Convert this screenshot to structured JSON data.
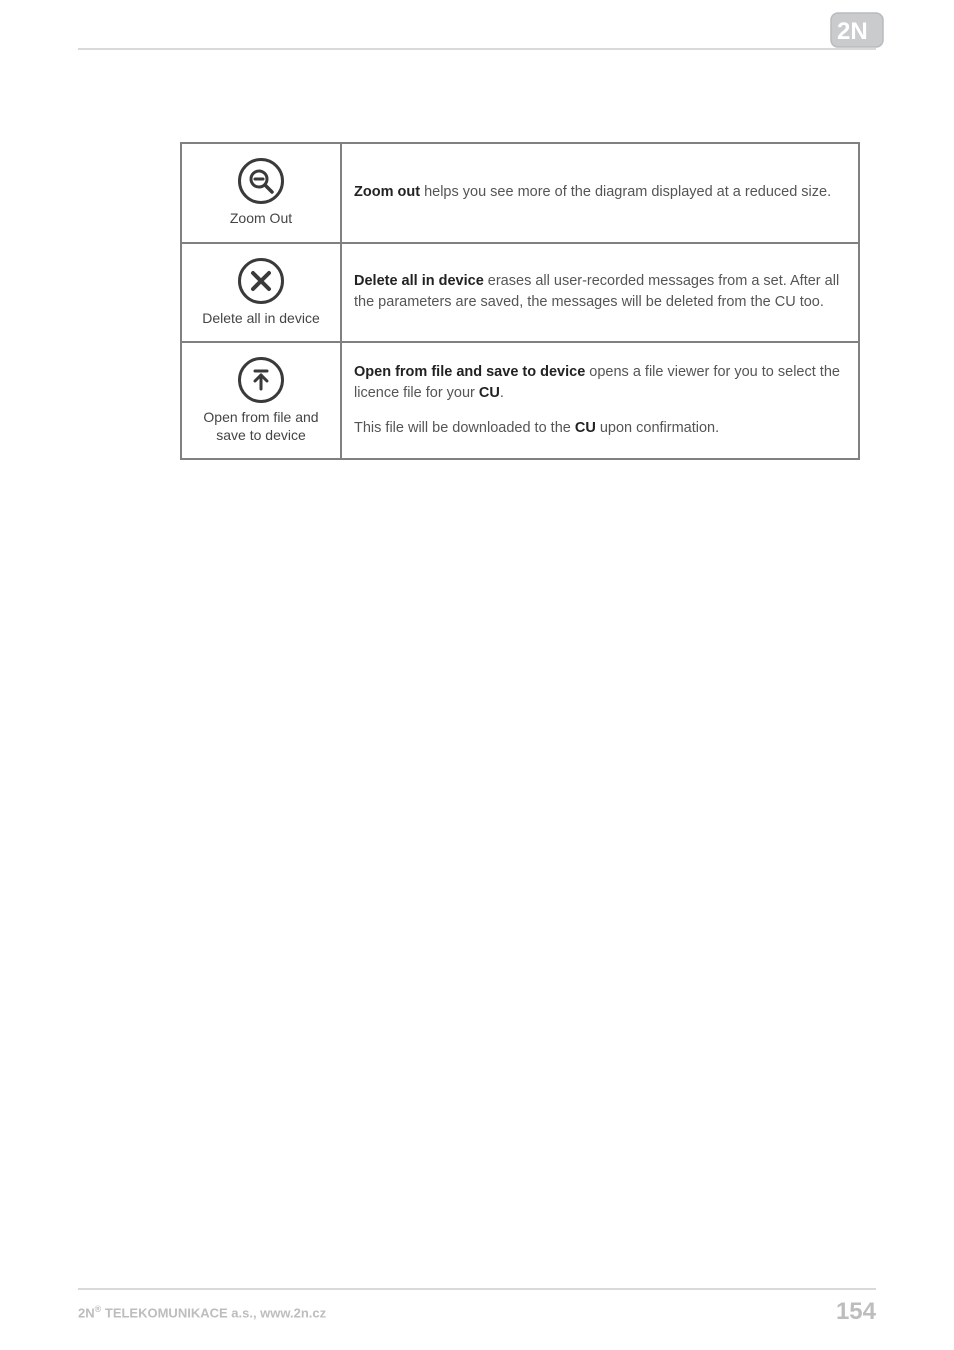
{
  "colors": {
    "rule": "#d9d9d9",
    "border": "#808080",
    "icon_stroke": "#3a3a3a",
    "body_text": "#555555",
    "bold_text": "#222222",
    "caption_text": "#444444",
    "footer_text": "#bdbdbd",
    "logo_fill": "#c9cbcd",
    "logo_border": "#b9bbbd"
  },
  "logo": {
    "text": "2N"
  },
  "rows": [
    {
      "icon": "zoom-out-icon",
      "caption": "Zoom Out",
      "desc_html": "<p><b>Zoom out</b> helps you see more of the diagram displayed at a reduced size.</p>"
    },
    {
      "icon": "delete-all-icon",
      "caption": "Delete all in device",
      "desc_html": "<p><b>Delete all in device</b> erases all user-recorded messages from a set. After all the parameters are saved, the messages will be deleted from the CU too.</p>"
    },
    {
      "icon": "open-save-icon",
      "caption": "Open from file and save to device",
      "desc_html": "<p><b>Open from file and save to device</b> opens a file viewer for you to select the licence file for your <b>CU</b>.</p><p>This file will be downloaded to the <b>CU</b> upon confirmation.</p>"
    }
  ],
  "footer": {
    "left_prefix": "2N",
    "left_sup": "®",
    "left_rest": " TELEKOMUNIKACE a.s., www.2n.cz",
    "page": "154"
  }
}
